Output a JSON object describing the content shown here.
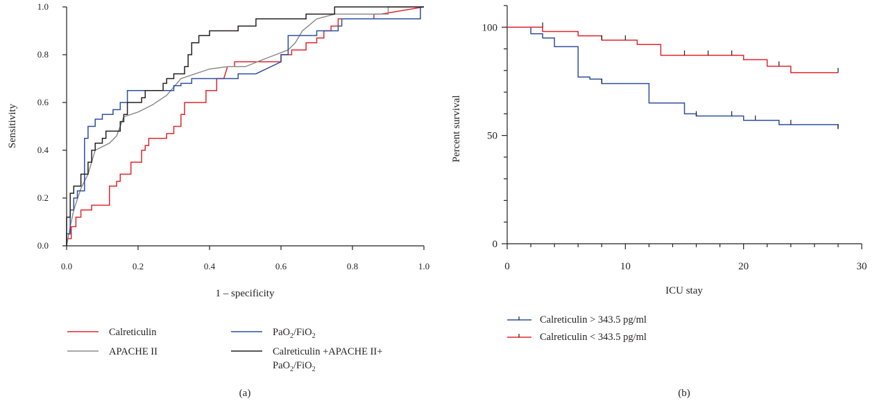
{
  "colors": {
    "red": "#e0262b",
    "gray": "#8c8c8c",
    "blue": "#2d4f9e",
    "black": "#231f20"
  },
  "chart_data": [
    {
      "type": "line",
      "panel_label": "(a)",
      "xlabel": "1 – specificity",
      "ylabel": "Sensitivity",
      "xlim": [
        0,
        1
      ],
      "ylim": [
        0,
        1
      ],
      "xticks": [
        "0.0",
        "0.2",
        "0.4",
        "0.6",
        "0.8",
        "1.0"
      ],
      "yticks": [
        "0.0",
        "0.2",
        "0.4",
        "0.6",
        "0.8",
        "1.0"
      ],
      "grid": false,
      "legend_position": "bottom",
      "series": [
        {
          "name": "Calreticulin",
          "color": "red",
          "points": [
            [
              0,
              0
            ],
            [
              0,
              0.03
            ],
            [
              0.013,
              0.03
            ],
            [
              0.013,
              0.08
            ],
            [
              0.026,
              0.08
            ],
            [
              0.026,
              0.12
            ],
            [
              0.04,
              0.12
            ],
            [
              0.04,
              0.15
            ],
            [
              0.07,
              0.15
            ],
            [
              0.07,
              0.17
            ],
            [
              0.12,
              0.17
            ],
            [
              0.12,
              0.25
            ],
            [
              0.14,
              0.25
            ],
            [
              0.14,
              0.27
            ],
            [
              0.15,
              0.27
            ],
            [
              0.15,
              0.3
            ],
            [
              0.18,
              0.3
            ],
            [
              0.18,
              0.35
            ],
            [
              0.21,
              0.35
            ],
            [
              0.21,
              0.4
            ],
            [
              0.22,
              0.4
            ],
            [
              0.22,
              0.42
            ],
            [
              0.23,
              0.42
            ],
            [
              0.23,
              0.45
            ],
            [
              0.28,
              0.45
            ],
            [
              0.28,
              0.47
            ],
            [
              0.3,
              0.47
            ],
            [
              0.3,
              0.5
            ],
            [
              0.32,
              0.5
            ],
            [
              0.32,
              0.55
            ],
            [
              0.33,
              0.55
            ],
            [
              0.33,
              0.6
            ],
            [
              0.39,
              0.6
            ],
            [
              0.39,
              0.65
            ],
            [
              0.42,
              0.65
            ],
            [
              0.42,
              0.7
            ],
            [
              0.44,
              0.7
            ],
            [
              0.45,
              0.75
            ],
            [
              0.47,
              0.75
            ],
            [
              0.47,
              0.77
            ],
            [
              0.6,
              0.77
            ],
            [
              0.6,
              0.8
            ],
            [
              0.63,
              0.8
            ],
            [
              0.63,
              0.82
            ],
            [
              0.67,
              0.82
            ],
            [
              0.67,
              0.85
            ],
            [
              0.7,
              0.85
            ],
            [
              0.7,
              0.87
            ],
            [
              0.72,
              0.87
            ],
            [
              0.72,
              0.9
            ],
            [
              0.74,
              0.9
            ],
            [
              0.74,
              0.92
            ],
            [
              0.76,
              0.92
            ],
            [
              0.76,
              0.95
            ],
            [
              0.86,
              0.95
            ],
            [
              0.86,
              0.97
            ],
            [
              0.88,
              0.97
            ],
            [
              1.0,
              1.0
            ]
          ]
        },
        {
          "name": "APACHE II",
          "color": "gray",
          "points": [
            [
              0,
              0
            ],
            [
              0.01,
              0.08
            ],
            [
              0.02,
              0.15
            ],
            [
              0.04,
              0.24
            ],
            [
              0.06,
              0.3
            ],
            [
              0.08,
              0.4
            ],
            [
              0.12,
              0.43
            ],
            [
              0.14,
              0.46
            ],
            [
              0.16,
              0.54
            ],
            [
              0.2,
              0.56
            ],
            [
              0.24,
              0.59
            ],
            [
              0.28,
              0.63
            ],
            [
              0.32,
              0.7
            ],
            [
              0.36,
              0.72
            ],
            [
              0.4,
              0.74
            ],
            [
              0.45,
              0.75
            ],
            [
              0.5,
              0.75
            ],
            [
              0.55,
              0.78
            ],
            [
              0.62,
              0.82
            ],
            [
              0.64,
              0.85
            ],
            [
              0.66,
              0.9
            ],
            [
              0.7,
              0.95
            ],
            [
              0.75,
              0.97
            ],
            [
              0.9,
              0.97
            ],
            [
              0.9,
              1.0
            ],
            [
              1.0,
              1.0
            ]
          ]
        },
        {
          "name": "PaO2/FiO2",
          "color": "blue",
          "points": [
            [
              0,
              0
            ],
            [
              0,
              0.05
            ],
            [
              0.01,
              0.05
            ],
            [
              0.01,
              0.15
            ],
            [
              0.02,
              0.15
            ],
            [
              0.02,
              0.2
            ],
            [
              0.03,
              0.2
            ],
            [
              0.03,
              0.23
            ],
            [
              0.05,
              0.23
            ],
            [
              0.05,
              0.45
            ],
            [
              0.06,
              0.45
            ],
            [
              0.06,
              0.5
            ],
            [
              0.08,
              0.5
            ],
            [
              0.08,
              0.53
            ],
            [
              0.1,
              0.53
            ],
            [
              0.1,
              0.55
            ],
            [
              0.13,
              0.55
            ],
            [
              0.13,
              0.57
            ],
            [
              0.15,
              0.57
            ],
            [
              0.15,
              0.6
            ],
            [
              0.17,
              0.6
            ],
            [
              0.17,
              0.65
            ],
            [
              0.3,
              0.65
            ],
            [
              0.3,
              0.67
            ],
            [
              0.32,
              0.67
            ],
            [
              0.32,
              0.68
            ],
            [
              0.35,
              0.68
            ],
            [
              0.35,
              0.7
            ],
            [
              0.48,
              0.7
            ],
            [
              0.48,
              0.72
            ],
            [
              0.53,
              0.72
            ],
            [
              0.6,
              0.77
            ],
            [
              0.6,
              0.8
            ],
            [
              0.62,
              0.8
            ],
            [
              0.62,
              0.88
            ],
            [
              0.7,
              0.88
            ],
            [
              0.7,
              0.9
            ],
            [
              0.76,
              0.9
            ],
            [
              0.76,
              0.92
            ],
            [
              0.77,
              0.92
            ],
            [
              0.77,
              0.95
            ],
            [
              0.99,
              0.95
            ],
            [
              0.99,
              1.0
            ],
            [
              1.0,
              1.0
            ]
          ]
        },
        {
          "name": "Calreticulin +APACHE II+ PaO2/FiO2",
          "color": "black",
          "points": [
            [
              0,
              0
            ],
            [
              0,
              0.12
            ],
            [
              0.01,
              0.12
            ],
            [
              0.01,
              0.22
            ],
            [
              0.02,
              0.22
            ],
            [
              0.02,
              0.25
            ],
            [
              0.04,
              0.25
            ],
            [
              0.04,
              0.3
            ],
            [
              0.06,
              0.3
            ],
            [
              0.06,
              0.35
            ],
            [
              0.07,
              0.35
            ],
            [
              0.07,
              0.4
            ],
            [
              0.08,
              0.4
            ],
            [
              0.08,
              0.43
            ],
            [
              0.1,
              0.43
            ],
            [
              0.1,
              0.45
            ],
            [
              0.11,
              0.45
            ],
            [
              0.11,
              0.48
            ],
            [
              0.15,
              0.48
            ],
            [
              0.15,
              0.52
            ],
            [
              0.16,
              0.52
            ],
            [
              0.16,
              0.55
            ],
            [
              0.17,
              0.55
            ],
            [
              0.17,
              0.6
            ],
            [
              0.21,
              0.6
            ],
            [
              0.21,
              0.62
            ],
            [
              0.22,
              0.62
            ],
            [
              0.22,
              0.65
            ],
            [
              0.27,
              0.65
            ],
            [
              0.27,
              0.68
            ],
            [
              0.28,
              0.68
            ],
            [
              0.28,
              0.7
            ],
            [
              0.3,
              0.7
            ],
            [
              0.3,
              0.72
            ],
            [
              0.33,
              0.72
            ],
            [
              0.33,
              0.75
            ],
            [
              0.34,
              0.75
            ],
            [
              0.34,
              0.8
            ],
            [
              0.35,
              0.8
            ],
            [
              0.35,
              0.85
            ],
            [
              0.37,
              0.85
            ],
            [
              0.37,
              0.88
            ],
            [
              0.4,
              0.88
            ],
            [
              0.4,
              0.9
            ],
            [
              0.48,
              0.9
            ],
            [
              0.48,
              0.92
            ],
            [
              0.53,
              0.92
            ],
            [
              0.53,
              0.95
            ],
            [
              0.67,
              0.95
            ],
            [
              0.67,
              0.97
            ],
            [
              0.75,
              0.97
            ],
            [
              0.75,
              1.0
            ],
            [
              1.0,
              1.0
            ]
          ]
        }
      ]
    },
    {
      "type": "line",
      "panel_label": "(b)",
      "xlabel": "ICU stay",
      "ylabel": "Percent survival",
      "xlim": [
        0,
        30
      ],
      "ylim": [
        0,
        110
      ],
      "xticks": [
        "0",
        "10",
        "20",
        "30"
      ],
      "yticks": [
        "0",
        "50",
        "100"
      ],
      "grid": false,
      "legend_position": "bottom-left",
      "series": [
        {
          "name": "Calreticulin > 343.5 pg/ml",
          "color": "blue",
          "steps": [
            [
              0,
              100
            ],
            [
              2,
              97
            ],
            [
              3,
              95
            ],
            [
              4,
              91
            ],
            [
              6,
              77
            ],
            [
              7,
              76
            ],
            [
              8,
              74
            ],
            [
              12,
              65
            ],
            [
              15,
              60
            ],
            [
              16,
              59
            ],
            [
              20,
              57
            ],
            [
              23,
              55
            ],
            [
              28,
              53
            ]
          ],
          "censor": [
            [
              8,
              74
            ],
            [
              16,
              59
            ],
            [
              19,
              59
            ],
            [
              21,
              57
            ],
            [
              24,
              55
            ],
            [
              28,
              53
            ]
          ]
        },
        {
          "name": "Calreticulin < 343.5 pg/ml",
          "color": "red",
          "steps": [
            [
              0,
              100
            ],
            [
              3,
              98
            ],
            [
              6,
              96
            ],
            [
              8,
              94
            ],
            [
              11,
              92
            ],
            [
              13,
              87
            ],
            [
              20,
              85
            ],
            [
              22,
              82
            ],
            [
              24,
              79
            ],
            [
              28,
              79
            ]
          ],
          "censor": [
            [
              3,
              100
            ],
            [
              8,
              94
            ],
            [
              10,
              94
            ],
            [
              15,
              87
            ],
            [
              17,
              87
            ],
            [
              19,
              87
            ],
            [
              23,
              82
            ],
            [
              28,
              79
            ]
          ]
        }
      ]
    }
  ],
  "legend_a": {
    "calreticulin": "Calreticulin",
    "apache": "APACHE II",
    "pao2_main": "PaO",
    "pao2_sub": "2",
    "pao2_mid": "/FiO",
    "pao2_sub2": "2",
    "combo_line1": "Calreticulin +APACHE II+",
    "combo_line2_main": "PaO",
    "combo_line2_sub": "2",
    "combo_line2_mid": "/FiO",
    "combo_line2_sub2": "2"
  },
  "legend_b": {
    "high": "Calreticulin > 343.5 pg/ml",
    "low": "Calreticulin < 343.5 pg/ml"
  }
}
